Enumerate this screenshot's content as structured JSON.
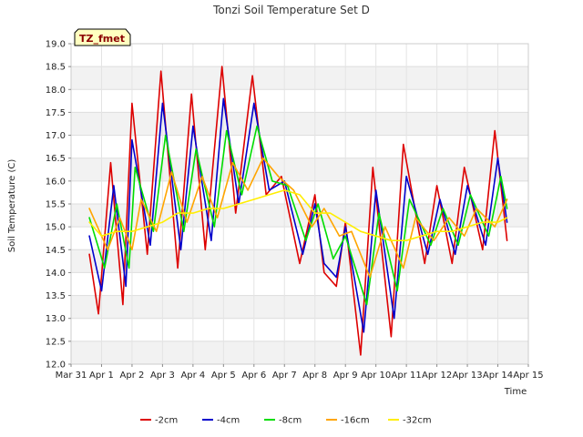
{
  "chart_data": {
    "type": "line",
    "title": "Tonzi Soil Temperature Set D",
    "xlabel": "Time",
    "ylabel": "Soil Temperature (C)",
    "station_tag": "TZ_fmet",
    "ylim": [
      12.0,
      19.0
    ],
    "yticks": [
      12.0,
      12.5,
      13.0,
      13.5,
      14.0,
      14.5,
      15.0,
      15.5,
      16.0,
      16.5,
      17.0,
      17.5,
      18.0,
      18.5,
      19.0
    ],
    "ytick_labels": [
      "12.0",
      "12.5",
      "13.0",
      "13.5",
      "14.0",
      "14.5",
      "15.0",
      "15.5",
      "16.0",
      "16.5",
      "17.0",
      "17.5",
      "18.0",
      "18.5",
      "19.0"
    ],
    "xlim": [
      0,
      15
    ],
    "xticks": [
      0,
      1,
      2,
      3,
      4,
      5,
      6,
      7,
      8,
      9,
      10,
      11,
      12,
      13,
      14,
      15
    ],
    "xtick_labels": [
      "Mar 31",
      "Apr 1",
      "Apr 2",
      "Apr 3",
      "Apr 4",
      "Apr 5",
      "Apr 6",
      "Apr 7",
      "Apr 8",
      "Apr 9",
      "Apr 10",
      "Apr 11",
      "Apr 12",
      "Apr 13",
      "Apr 14",
      "Apr 15"
    ],
    "grid": true,
    "series": [
      {
        "name": "-2cm",
        "color": "#dd0000",
        "x": [
          0.6,
          0.9,
          1.3,
          1.7,
          2.0,
          2.5,
          2.95,
          3.5,
          3.95,
          4.4,
          4.95,
          5.4,
          5.95,
          6.4,
          6.9,
          7.5,
          8.0,
          8.3,
          8.7,
          9.0,
          9.5,
          9.9,
          10.5,
          10.9,
          11.6,
          12.0,
          12.5,
          12.9,
          13.5,
          13.9,
          14.3
        ],
        "y": [
          14.4,
          13.1,
          16.4,
          13.3,
          17.7,
          14.4,
          18.4,
          14.1,
          17.9,
          14.5,
          18.5,
          15.3,
          18.3,
          15.7,
          16.1,
          14.2,
          15.7,
          14.0,
          13.7,
          15.1,
          12.2,
          16.3,
          12.6,
          16.8,
          14.2,
          15.9,
          14.2,
          16.3,
          14.5,
          17.1,
          14.7
        ]
      },
      {
        "name": "-4cm",
        "color": "#0000cc",
        "x": [
          0.6,
          1.0,
          1.4,
          1.8,
          2.0,
          2.6,
          3.0,
          3.6,
          4.0,
          4.6,
          5.0,
          5.5,
          6.0,
          6.5,
          7.0,
          7.6,
          8.0,
          8.3,
          8.7,
          9.0,
          9.6,
          10.0,
          10.6,
          11.0,
          11.7,
          12.1,
          12.6,
          13.0,
          13.6,
          14.0,
          14.3
        ],
        "y": [
          14.8,
          13.6,
          15.9,
          13.7,
          16.9,
          14.6,
          17.7,
          14.5,
          17.2,
          14.7,
          17.8,
          15.5,
          17.7,
          15.8,
          16.0,
          14.4,
          15.5,
          14.2,
          13.9,
          15.0,
          12.7,
          15.8,
          13.0,
          16.1,
          14.4,
          15.6,
          14.4,
          15.9,
          14.6,
          16.5,
          15.1
        ]
      },
      {
        "name": "-8cm",
        "color": "#00dd00",
        "x": [
          0.6,
          1.1,
          1.5,
          1.9,
          2.1,
          2.7,
          3.1,
          3.7,
          4.1,
          4.7,
          5.1,
          5.6,
          6.1,
          6.6,
          7.1,
          7.7,
          8.1,
          8.6,
          9.0,
          9.7,
          10.1,
          10.7,
          11.1,
          11.8,
          12.2,
          12.7,
          13.1,
          13.7,
          14.1,
          14.3
        ],
        "y": [
          15.2,
          14.1,
          15.5,
          14.1,
          16.3,
          14.9,
          17.0,
          14.9,
          16.7,
          15.0,
          17.1,
          15.7,
          17.2,
          16.0,
          15.9,
          14.7,
          15.5,
          14.3,
          14.8,
          13.3,
          15.3,
          13.6,
          15.6,
          14.6,
          15.4,
          14.6,
          15.7,
          14.8,
          16.1,
          15.4
        ]
      },
      {
        "name": "-16cm",
        "color": "#ffa500",
        "x": [
          0.6,
          1.2,
          1.6,
          2.0,
          2.3,
          2.8,
          3.3,
          3.8,
          4.3,
          4.8,
          5.3,
          5.8,
          6.3,
          6.8,
          7.3,
          7.9,
          8.3,
          8.8,
          9.2,
          9.8,
          10.3,
          10.9,
          11.3,
          11.9,
          12.4,
          12.9,
          13.3,
          13.9,
          14.3
        ],
        "y": [
          15.4,
          14.5,
          15.2,
          14.5,
          15.6,
          14.9,
          16.2,
          15.1,
          16.1,
          15.2,
          16.4,
          15.8,
          16.5,
          16.1,
          15.8,
          15.0,
          15.4,
          14.8,
          14.9,
          13.9,
          15.0,
          14.1,
          15.2,
          14.7,
          15.2,
          14.8,
          15.4,
          15.0,
          15.6
        ]
      },
      {
        "name": "-32cm",
        "color": "#ffee00",
        "x": [
          0.6,
          1.0,
          1.5,
          2.0,
          2.5,
          3.0,
          3.5,
          4.0,
          4.5,
          5.0,
          5.5,
          6.0,
          6.5,
          7.0,
          7.5,
          8.0,
          8.5,
          9.0,
          9.5,
          10.0,
          10.5,
          11.0,
          11.5,
          12.0,
          12.5,
          13.0,
          13.5,
          14.0,
          14.3
        ],
        "y": [
          15.1,
          14.8,
          14.9,
          14.9,
          15.0,
          15.1,
          15.3,
          15.3,
          15.4,
          15.4,
          15.5,
          15.6,
          15.7,
          15.8,
          15.7,
          15.3,
          15.3,
          15.1,
          14.9,
          14.8,
          14.7,
          14.7,
          14.8,
          14.9,
          14.9,
          15.0,
          15.1,
          15.1,
          15.2
        ]
      }
    ]
  }
}
